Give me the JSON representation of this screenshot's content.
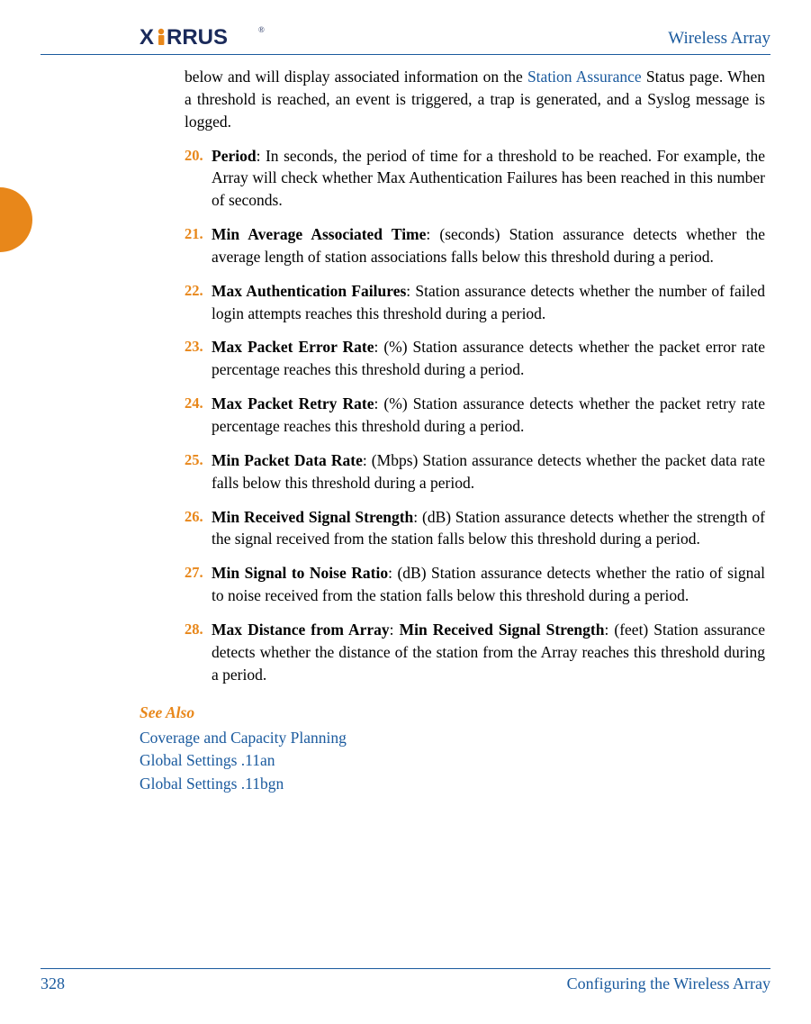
{
  "colors": {
    "accent": "#e8871a",
    "link": "#1a5a9e",
    "side_tab": "#e8871a",
    "text": "#000000",
    "logo_text": "#1a2a5a",
    "logo_accent": "#e8871a"
  },
  "header": {
    "title": "Wireless Array",
    "logo_text": "XIRRUS"
  },
  "intro": {
    "pre": "below and will display associated information on the ",
    "link": "Station Assurance",
    "post": " Status page. When a threshold is reached, an event is triggered, a trap is generated, and a Syslog message is logged."
  },
  "items": [
    {
      "num": "20.",
      "term": "Period",
      "suffix": ": In seconds, the period of time for a threshold to be reached. For example, the Array will check whether Max Authentication Failures has been reached in this number of seconds."
    },
    {
      "num": "21.",
      "term": "Min Average Associated Time",
      "suffix": ": (seconds) Station assurance detects whether the average length of station associations falls below this threshold during a period."
    },
    {
      "num": "22.",
      "term": "Max Authentication Failures",
      "suffix": ": Station assurance detects whether the number of failed login attempts reaches this threshold during a period."
    },
    {
      "num": "23.",
      "term": "Max Packet Error Rate",
      "suffix": ": (%) Station assurance detects whether the packet error rate percentage reaches this threshold during a period."
    },
    {
      "num": "24.",
      "term": "Max Packet Retry Rate",
      "suffix": ": (%) Station assurance detects whether the packet retry rate percentage reaches this threshold during a period."
    },
    {
      "num": "25.",
      "term": "Min Packet Data Rate",
      "suffix": ": (Mbps) Station assurance detects whether the packet data rate falls below this threshold during a period."
    },
    {
      "num": "26.",
      "term": "Min Received Signal Strength",
      "suffix": ": (dB) Station assurance detects whether the strength of the signal received from the station falls below this threshold during a period."
    },
    {
      "num": "27.",
      "term": "Min Signal to Noise Ratio",
      "suffix": ": (dB) Station assurance detects whether the ratio of signal to noise received from the station falls below this threshold during a period."
    },
    {
      "num": "28.",
      "term": "Max Distance from Array",
      "term2": "Min Received Signal Strength",
      "suffix": ": (feet) Station assurance detects whether the distance of the station from the Array reaches this threshold during a period."
    }
  ],
  "see_also": {
    "heading": "See Also",
    "links": [
      "Coverage and Capacity Planning",
      "Global Settings .11an",
      "Global Settings .11bgn"
    ]
  },
  "footer": {
    "page_num": "328",
    "section": "Configuring the Wireless Array"
  }
}
